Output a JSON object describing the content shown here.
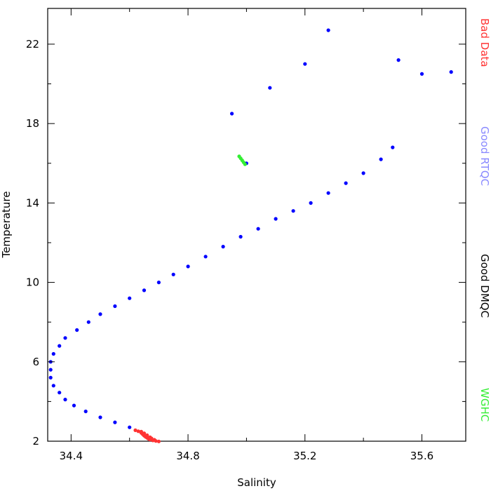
{
  "chart_data": {
    "type": "scatter",
    "title": "",
    "xlabel": "Salinity",
    "ylabel": "Temperature",
    "xlim": [
      34.32,
      35.75
    ],
    "ylim": [
      2,
      23.8
    ],
    "x_ticks": [
      "34.4",
      "34.8",
      "35.2",
      "35.6"
    ],
    "x_tick_values": [
      34.4,
      34.8,
      35.2,
      35.6
    ],
    "y_ticks": [
      "2",
      "6",
      "10",
      "14",
      "18",
      "22"
    ],
    "y_tick_values": [
      2,
      6,
      10,
      14,
      18,
      22
    ],
    "grid": false,
    "legend_position": "right",
    "series": [
      {
        "name": "Bad Data",
        "color": "#ff3333",
        "points": [
          [
            34.62,
            2.55
          ],
          [
            34.63,
            2.5
          ],
          [
            34.64,
            2.42
          ],
          [
            34.645,
            2.35
          ],
          [
            34.65,
            2.28
          ],
          [
            34.655,
            2.22
          ],
          [
            34.66,
            2.17
          ],
          [
            34.665,
            2.12
          ],
          [
            34.67,
            2.08
          ],
          [
            34.68,
            2.04
          ],
          [
            34.69,
            2.01
          ],
          [
            34.7,
            1.99
          ],
          [
            34.64,
            2.48
          ],
          [
            34.65,
            2.4
          ],
          [
            34.66,
            2.3
          ],
          [
            34.67,
            2.2
          ],
          [
            34.675,
            2.14
          ],
          [
            34.685,
            2.07
          ]
        ]
      },
      {
        "name": "Good RTQC",
        "color": "#0000ff",
        "points": [
          [
            34.6,
            2.7
          ],
          [
            34.55,
            2.95
          ],
          [
            34.5,
            3.2
          ],
          [
            34.45,
            3.5
          ],
          [
            34.41,
            3.8
          ],
          [
            34.38,
            4.1
          ],
          [
            34.36,
            4.45
          ],
          [
            34.34,
            4.8
          ],
          [
            34.33,
            5.2
          ],
          [
            34.33,
            5.6
          ],
          [
            34.33,
            6.0
          ],
          [
            34.34,
            6.4
          ],
          [
            34.36,
            6.8
          ],
          [
            34.38,
            7.2
          ],
          [
            34.42,
            7.6
          ],
          [
            34.46,
            8.0
          ],
          [
            34.5,
            8.4
          ],
          [
            34.55,
            8.8
          ],
          [
            34.6,
            9.2
          ],
          [
            34.65,
            9.6
          ],
          [
            34.7,
            10.0
          ],
          [
            34.75,
            10.4
          ],
          [
            34.8,
            10.8
          ],
          [
            34.86,
            11.3
          ],
          [
            34.92,
            11.8
          ],
          [
            34.98,
            12.3
          ],
          [
            35.04,
            12.7
          ],
          [
            35.1,
            13.2
          ],
          [
            35.16,
            13.6
          ],
          [
            35.22,
            14.0
          ],
          [
            35.28,
            14.5
          ],
          [
            35.34,
            15.0
          ],
          [
            35.4,
            15.5
          ],
          [
            35.46,
            16.2
          ],
          [
            35.5,
            16.8
          ],
          [
            35.0,
            16.0
          ],
          [
            34.95,
            18.5
          ],
          [
            35.08,
            19.8
          ],
          [
            35.2,
            21.0
          ],
          [
            35.28,
            22.7
          ],
          [
            35.52,
            21.2
          ],
          [
            35.6,
            20.5
          ],
          [
            35.7,
            20.6
          ]
        ]
      },
      {
        "name": "Good DMQC",
        "color": "#000000",
        "points": []
      },
      {
        "name": "WGHC",
        "color": "#33ee33",
        "points": [
          [
            34.975,
            16.35
          ],
          [
            34.98,
            16.25
          ],
          [
            34.985,
            16.15
          ],
          [
            34.99,
            16.05
          ],
          [
            34.995,
            15.95
          ]
        ]
      }
    ]
  }
}
